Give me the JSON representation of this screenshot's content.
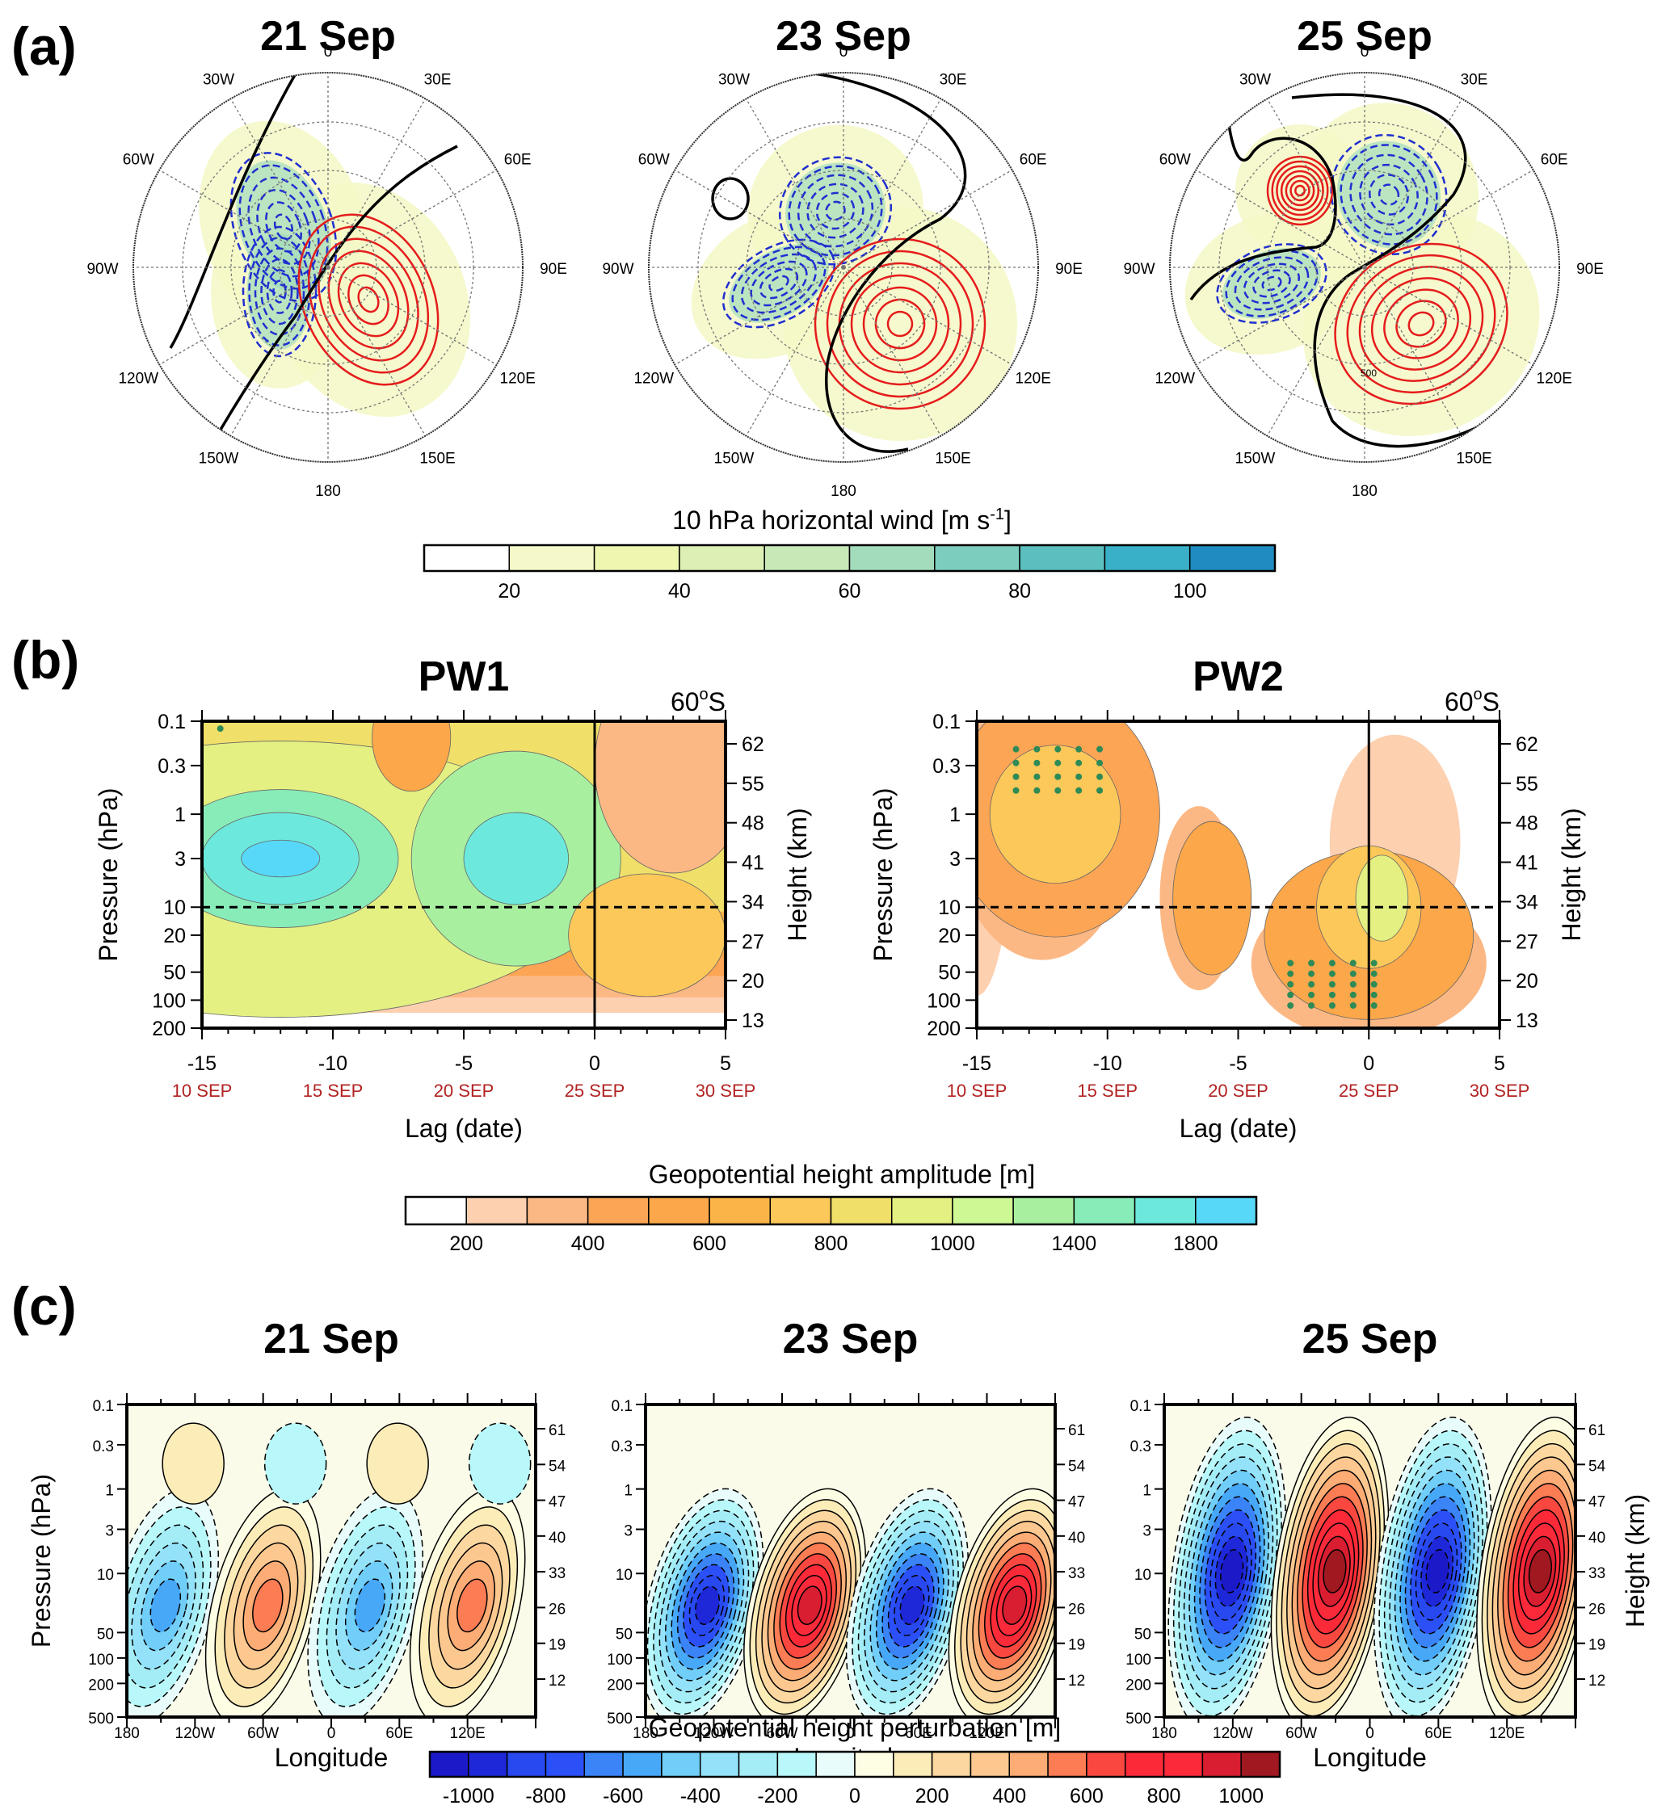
{
  "panel_labels": [
    "(a)",
    "(b)",
    "(c)"
  ],
  "chart_data": [
    {
      "id": "a",
      "type": "heatmap",
      "projection": "south-polar-stereographic",
      "titles": [
        "21 Sep",
        "23 Sep",
        "25 Sep"
      ],
      "longitude_labels": [
        "0",
        "30E",
        "60E",
        "90E",
        "120E",
        "150E",
        "180",
        "150W",
        "120W",
        "90W",
        "60W",
        "30W"
      ],
      "fill_variable": "10 hPa horizontal wind",
      "contours": {
        "positive": "red solid",
        "negative": "blue dashed",
        "zero": "black thick"
      },
      "inline_label": "500",
      "colorbar": {
        "title": "10 hPa horizontal wind [m s",
        "title_sup": "-1",
        "title_end": "]",
        "levels": [
          20,
          30,
          40,
          50,
          60,
          70,
          80,
          90,
          100
        ],
        "tick_labels": [
          "20",
          "40",
          "60",
          "80",
          "100"
        ],
        "colors": [
          "#ffffff",
          "#f5f8c8",
          "#eef6b0",
          "#dcefb4",
          "#c8e8b8",
          "#a2dcbc",
          "#7ccdbe",
          "#5abfbe",
          "#3ab0c8",
          "#1e8cc0"
        ]
      }
    },
    {
      "id": "b",
      "type": "heatmap",
      "titles": [
        "PW1",
        "PW2"
      ],
      "latitude_note": "60",
      "latitude_sup": "o",
      "latitude_end": "S",
      "xlabel": "Lag (date)",
      "ylabel": "Pressure (hPa)",
      "ylabel_right": "Height (km)",
      "x_ticks": [
        -15,
        -10,
        -5,
        0,
        5
      ],
      "x_tick_labels": [
        "-15",
        "-10",
        "-5",
        "0",
        "5"
      ],
      "date_labels": [
        "10 SEP",
        "15 SEP",
        "20 SEP",
        "25 SEP",
        "30 SEP"
      ],
      "xlim": [
        -15,
        5
      ],
      "y_ticks": [
        "0.1",
        "0.3",
        "1",
        "3",
        "10",
        "20",
        "50",
        "100",
        "200"
      ],
      "y_tick_values": [
        0.1,
        0.3,
        1,
        3,
        10,
        20,
        50,
        100,
        200
      ],
      "height_ticks": [
        "62",
        "55",
        "48",
        "41",
        "34",
        "27",
        "20",
        "13"
      ],
      "ylim": [
        200,
        0.1
      ],
      "reference_lines": {
        "lag": 0,
        "pressure_hPa": 10
      },
      "colorbar": {
        "title": "Geopotential height amplitude [m]",
        "levels": [
          200,
          300,
          400,
          500,
          600,
          700,
          800,
          900,
          1000,
          1200,
          1400,
          1600,
          1800
        ],
        "tick_labels": [
          "200",
          "400",
          "600",
          "800",
          "1000",
          "1400",
          "1800"
        ],
        "colors": [
          "#ffffff",
          "#fdd0b0",
          "#fcb884",
          "#fca555",
          "#fba74a",
          "#fbb448",
          "#fcc85a",
          "#f0e06a",
          "#e4f082",
          "#cef894",
          "#a8f0a0",
          "#88ecb8",
          "#6ce8dc",
          "#58d8f8"
        ]
      }
    },
    {
      "id": "c",
      "type": "heatmap",
      "titles": [
        "21 Sep",
        "23 Sep",
        "25 Sep"
      ],
      "xlabel": "Longitude",
      "ylabel": "Pressure (hPa)",
      "ylabel_right": "Height (km)",
      "x_tick_labels": [
        "180",
        "120W",
        "60W",
        "0",
        "60E",
        "120E"
      ],
      "y_ticks": [
        "0.1",
        "0.3",
        "1",
        "3",
        "10",
        "50",
        "100",
        "200",
        "500"
      ],
      "y_tick_values": [
        0.1,
        0.3,
        1,
        3,
        10,
        50,
        100,
        200,
        500
      ],
      "height_ticks": [
        "61",
        "54",
        "47",
        "40",
        "33",
        "26",
        "19",
        "12"
      ],
      "wave_amplitude_m": [
        450,
        850,
        1000
      ],
      "colorbar": {
        "title": "Geopotential height perturbation [m]",
        "levels": [
          -1000,
          -900,
          -800,
          -700,
          -600,
          -500,
          -400,
          -300,
          -200,
          -100,
          0,
          100,
          200,
          300,
          400,
          500,
          600,
          700,
          800,
          900,
          1000
        ],
        "tick_labels": [
          "-1000",
          "-800",
          "-600",
          "-400",
          "-200",
          "0",
          "200",
          "400",
          "600",
          "800",
          "1000"
        ],
        "colors": [
          "#1a1ac8",
          "#1e28d8",
          "#2848f0",
          "#2c50f8",
          "#3a84f8",
          "#48a8f8",
          "#70cef8",
          "#94e2fa",
          "#a4ecf6",
          "#b8f8fa",
          "#e8fcfc",
          "#fefee4",
          "#fcecb8",
          "#fcd8a0",
          "#fcc890",
          "#fcac74",
          "#fc7c54",
          "#fa4840",
          "#fc2a38",
          "#fa2a3a",
          "#d81e30",
          "#a01820"
        ]
      }
    }
  ]
}
